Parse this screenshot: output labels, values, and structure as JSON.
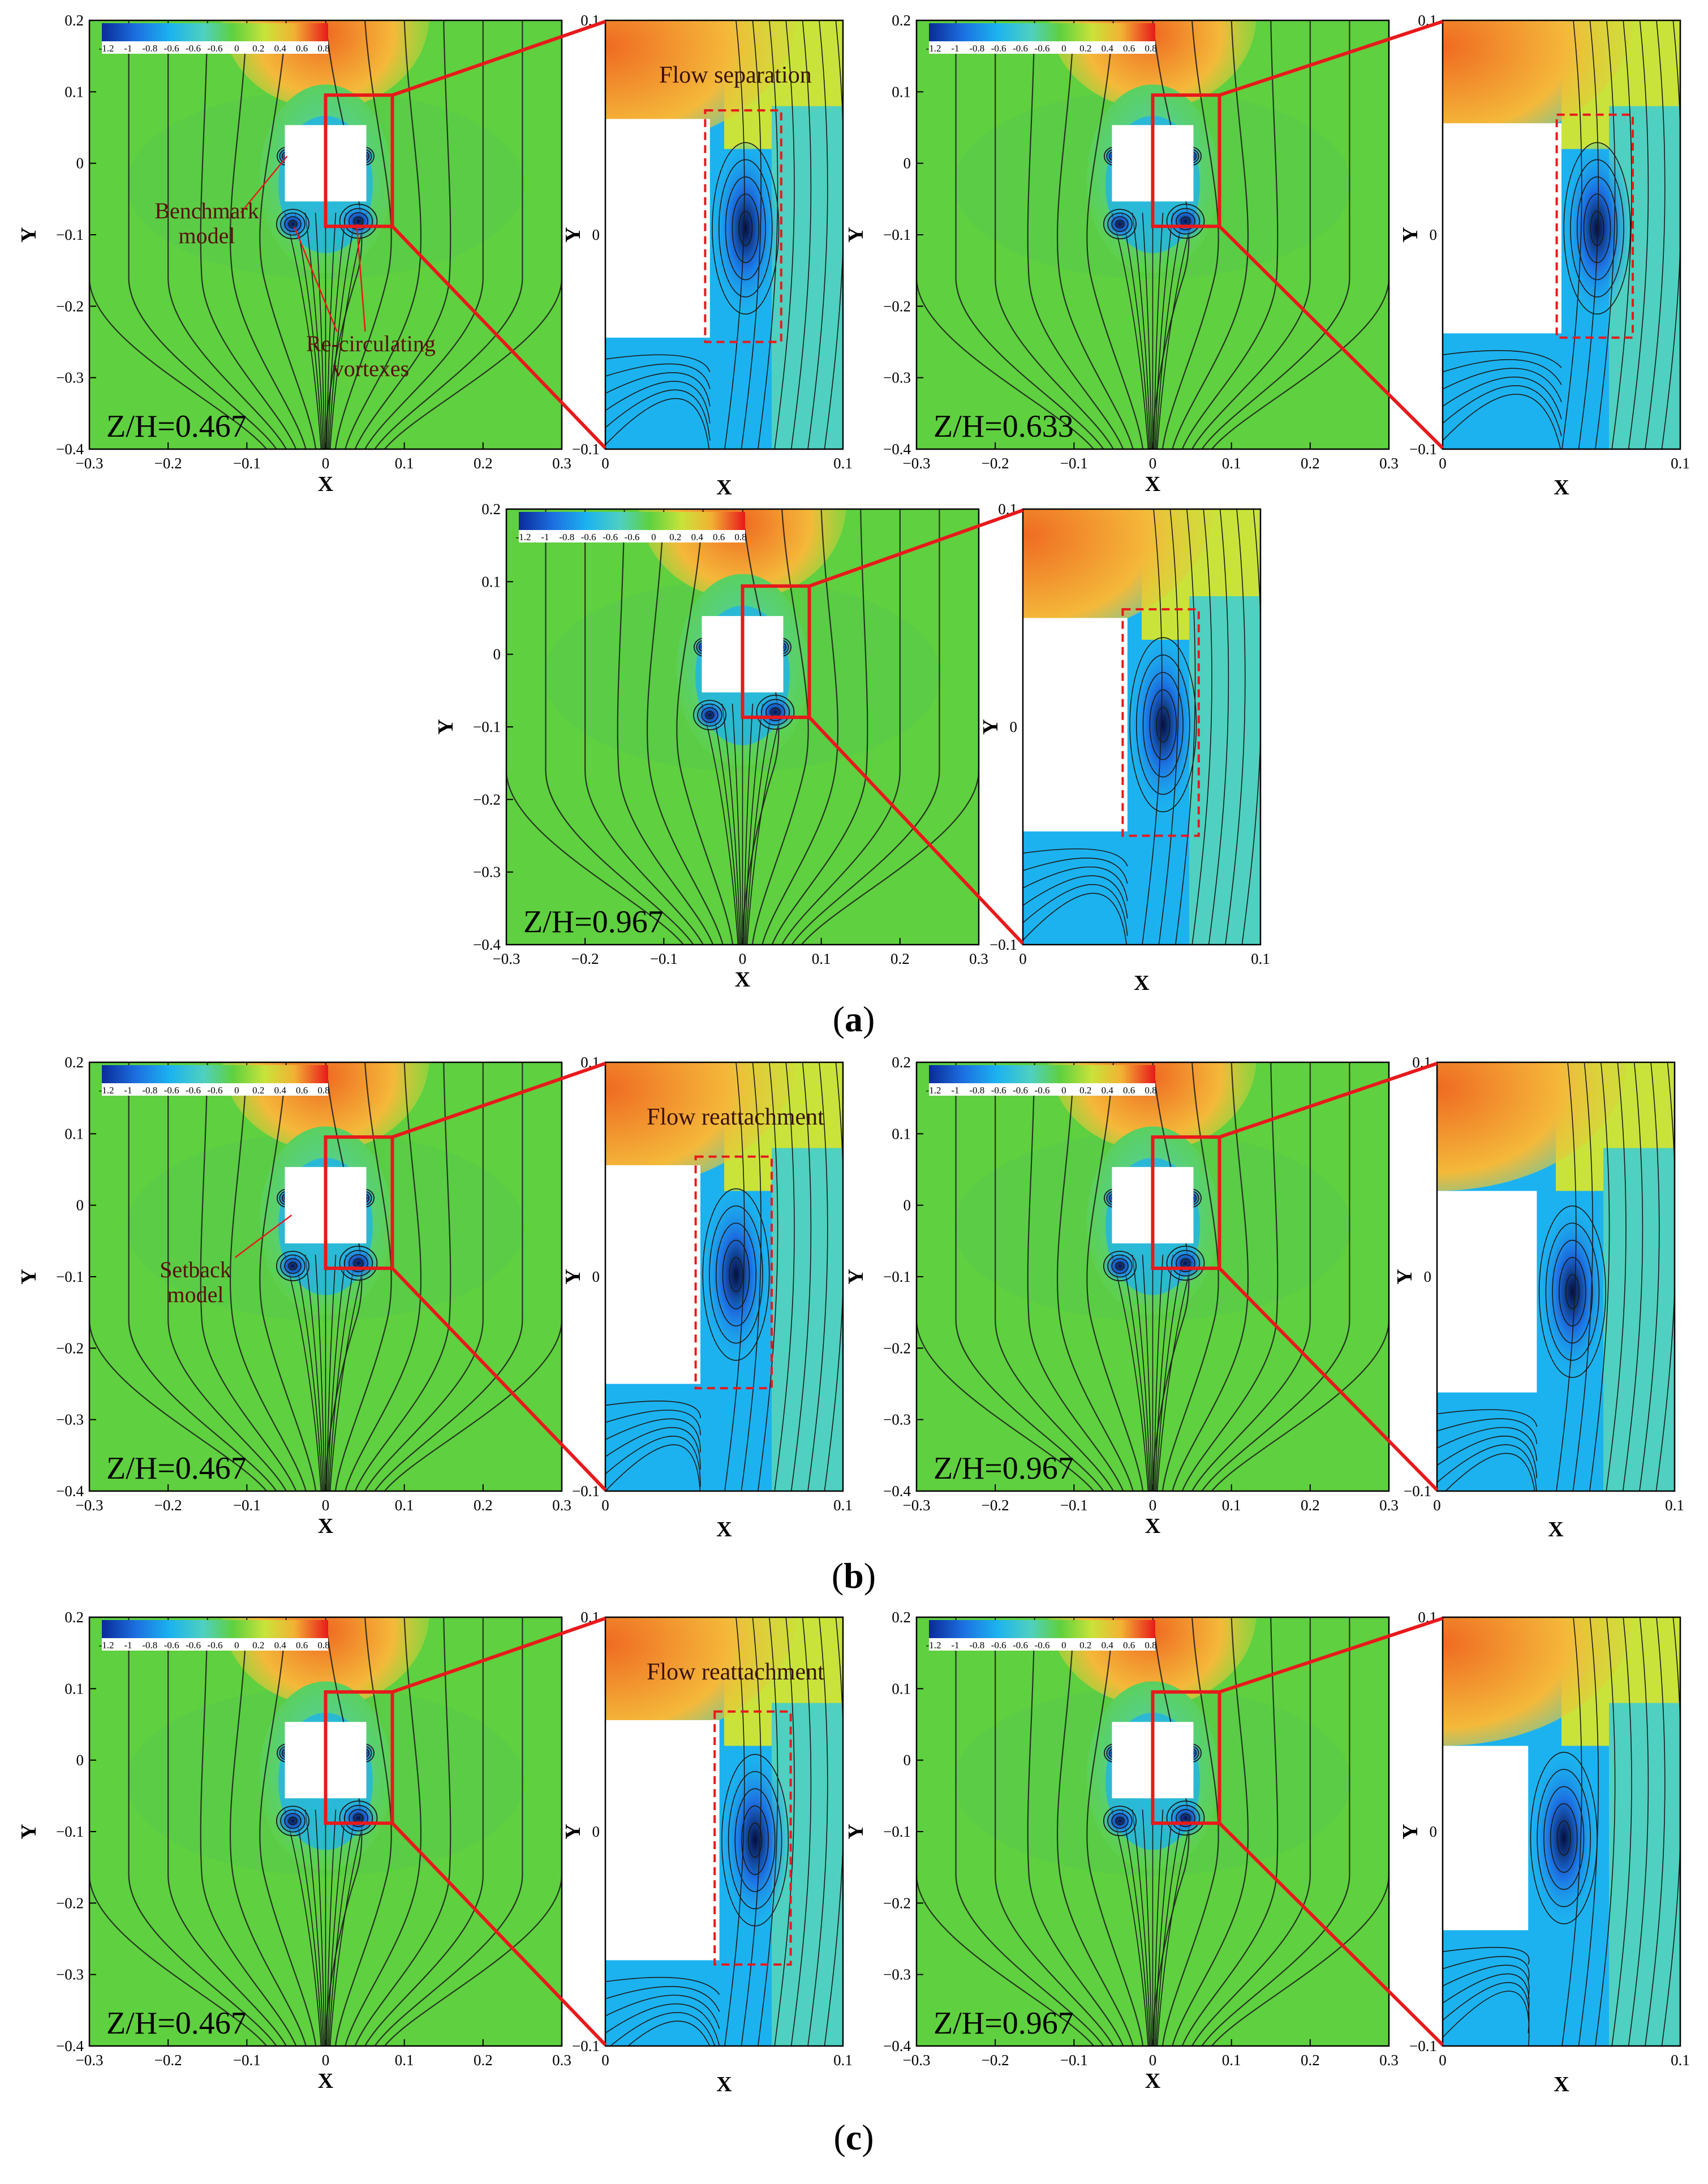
{
  "figure": {
    "panels": [
      {
        "id": "a1",
        "zh": "Z/H=0.467",
        "annotation": "Flow separation",
        "notes": [
          "Benchmark\nmodel",
          "Re-circulating\nvortexes"
        ]
      },
      {
        "id": "a2",
        "zh": "Z/H=0.633"
      },
      {
        "id": "a3",
        "zh": "Z/H=0.967"
      },
      {
        "id": "b1",
        "zh": "Z/H=0.467",
        "annotation": "Flow reattachment",
        "notes": [
          "Setback\nmodel"
        ]
      },
      {
        "id": "b2",
        "zh": "Z/H=0.967"
      },
      {
        "id": "c1",
        "zh": "Z/H=0.467",
        "annotation": "Flow reattachment"
      },
      {
        "id": "c2",
        "zh": "Z/H=0.967"
      }
    ],
    "colorbar_labels": [
      "-1.2",
      "-1",
      "-0.8",
      "-0.6",
      "-0.6",
      "-0.6",
      "0",
      "0.2",
      "0.4",
      "0.6",
      "0.8"
    ],
    "colors": {
      "field": "#5fd03f",
      "pos_low": "#c9e33a",
      "pos_mid": "#f2b233",
      "pos_high": "#ef7a2a",
      "neg_low": "#4fd0c0",
      "neg_mid": "#1cb2ef",
      "neg_high": "#1c6fe0",
      "neg_core": "#0a2a9a",
      "highlight": "#e8191b",
      "streamline": "#1a1a1a"
    },
    "subfigure_labels": [
      "(a)",
      "(b)",
      "(c)"
    ],
    "subfigure_letters": [
      "a",
      "b",
      "c"
    ]
  },
  "chart_data": [
    {
      "type": "contour",
      "xlabel": "X",
      "ylabel": "Y",
      "xlim": [
        -0.3,
        0.3
      ],
      "ylim": [
        -0.4,
        0.2
      ],
      "xticks": [
        "-0.3",
        "-0.2",
        "-0.1",
        "0",
        "0.1",
        "0.2",
        "0.3"
      ],
      "yticks": [
        "0.2",
        "0.1",
        "0",
        "-0.1",
        "-0.2",
        "-0.3",
        "-0.4"
      ]
    },
    {
      "type": "contour",
      "xlabel": "X",
      "ylabel": "Y",
      "xlim": [
        0,
        0.1
      ],
      "ylim": [
        -0.1,
        0.1
      ],
      "xticks": [
        "0",
        "0.1"
      ],
      "yticks": [
        "0.1",
        "0",
        "-0.1"
      ]
    }
  ]
}
